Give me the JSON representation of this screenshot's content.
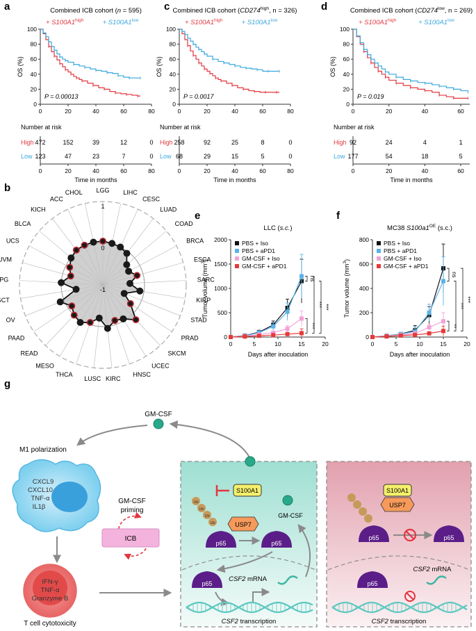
{
  "colors": {
    "high": "#e2363f",
    "low": "#3aa7dc",
    "pbs_iso": "#111111",
    "pbs_apd1": "#5ab2e8",
    "gmcsf_iso": "#f2a2d8",
    "gmcsf_apd1": "#e53a3a",
    "radar_line": "#111111",
    "radar_fill": "#bfbfbf",
    "teal_panel": "#d4f1ea",
    "pink_panel": "#efc3cd",
    "p65": "#5b1e88",
    "usp7": "#f59a5b",
    "s100a1": "#f5f06c",
    "ub": "#c69a5a",
    "gmcsf_dot": "#27a98a",
    "dna": "#5cc8c0"
  },
  "labels": {
    "a": "a",
    "b": "b",
    "c": "c",
    "d": "d",
    "e": "e",
    "f": "f",
    "g": "g"
  },
  "km_common": {
    "high_name": "S100A1",
    "high_sup": "high",
    "low_name": "S100A1",
    "low_sup": "low",
    "ylabel": "OS (%)",
    "xlabel": "Time in months",
    "risk_title": "Number at risk",
    "risk_high": "High",
    "risk_low": "Low",
    "yticks": [
      "0",
      "20",
      "40",
      "60",
      "80",
      "100"
    ]
  },
  "chart_data": [
    {
      "id": "a",
      "type": "line",
      "title_pre": "Combined ICB cohort (",
      "title_it": "n",
      "title_post": " = 595)",
      "xlim": [
        0,
        80
      ],
      "xticks": [
        "0",
        "20",
        "40",
        "60",
        "80"
      ],
      "ylim": [
        0,
        100
      ],
      "pvalue": "P = 0.00013",
      "series": [
        {
          "name": "S100A1 high",
          "x": [
            0,
            2,
            4,
            6,
            8,
            10,
            12,
            14,
            16,
            18,
            20,
            22,
            24,
            26,
            28,
            30,
            34,
            38,
            42,
            46,
            50,
            54,
            58,
            62,
            66,
            70,
            72
          ],
          "y": [
            100,
            94,
            86,
            77,
            70,
            64,
            59,
            54,
            50,
            46,
            43,
            40,
            37,
            35,
            33,
            31,
            28,
            25,
            22,
            20,
            17,
            15,
            14,
            13,
            12,
            11,
            11
          ]
        },
        {
          "name": "S100A1 low",
          "x": [
            0,
            2,
            4,
            6,
            8,
            10,
            12,
            14,
            16,
            18,
            20,
            24,
            28,
            32,
            36,
            40,
            44,
            48,
            52,
            56,
            60,
            64,
            68,
            72
          ],
          "y": [
            100,
            95,
            90,
            83,
            77,
            72,
            67,
            63,
            60,
            58,
            56,
            53,
            51,
            49,
            47,
            45,
            44,
            42,
            41,
            38,
            36,
            35,
            35,
            35
          ]
        }
      ],
      "risk": {
        "x": [
          "0",
          "20",
          "40",
          "60",
          "80"
        ],
        "high": [
          "472",
          "152",
          "39",
          "12",
          "0"
        ],
        "low": [
          "123",
          "47",
          "23",
          "7",
          "0"
        ]
      }
    },
    {
      "id": "c",
      "type": "line",
      "title_pre": "Combined ICB cohort (",
      "title_it": "CD274",
      "title_sup": "high",
      "title_post": ", n = 326)",
      "xlim": [
        0,
        80
      ],
      "xticks": [
        "0",
        "20",
        "40",
        "60",
        "80"
      ],
      "ylim": [
        0,
        100
      ],
      "pvalue": "P = 0.0017",
      "series": [
        {
          "name": "S100A1 high",
          "x": [
            0,
            2,
            4,
            6,
            8,
            10,
            12,
            14,
            16,
            18,
            20,
            22,
            24,
            26,
            28,
            30,
            34,
            38,
            42,
            46,
            50,
            54,
            58,
            62,
            66,
            70,
            72
          ],
          "y": [
            100,
            94,
            86,
            78,
            71,
            65,
            60,
            55,
            51,
            47,
            44,
            41,
            38,
            35,
            33,
            31,
            28,
            25,
            22,
            20,
            18,
            17,
            16,
            16,
            16,
            16,
            16
          ]
        },
        {
          "name": "S100A1 low",
          "x": [
            0,
            2,
            4,
            6,
            8,
            10,
            12,
            14,
            16,
            18,
            20,
            24,
            28,
            32,
            36,
            40,
            44,
            48,
            52,
            56,
            60,
            64,
            68,
            72
          ],
          "y": [
            100,
            97,
            93,
            88,
            84,
            80,
            76,
            73,
            70,
            67,
            64,
            60,
            57,
            55,
            53,
            51,
            49,
            48,
            47,
            46,
            44,
            44,
            44,
            44
          ]
        }
      ],
      "risk": {
        "x": [
          "0",
          "20",
          "40",
          "60",
          "80"
        ],
        "high": [
          "258",
          "92",
          "25",
          "8",
          "0"
        ],
        "low": [
          "68",
          "29",
          "15",
          "5",
          "0"
        ]
      }
    },
    {
      "id": "d",
      "type": "line",
      "title_pre": "Combined ICB cohort (",
      "title_it": "CD274",
      "title_sup": "low",
      "title_post": ", n = 269)",
      "xlim": [
        0,
        65
      ],
      "xticks": [
        "0",
        "20",
        "40",
        "60"
      ],
      "ylim": [
        0,
        100
      ],
      "pvalue": "P = 0.019",
      "series": [
        {
          "name": "S100A1 high",
          "x": [
            0,
            2,
            4,
            6,
            8,
            10,
            12,
            14,
            16,
            18,
            20,
            24,
            28,
            32,
            36,
            40,
            44,
            48,
            52,
            56,
            60,
            64
          ],
          "y": [
            100,
            90,
            80,
            70,
            62,
            55,
            49,
            44,
            40,
            36,
            32,
            28,
            25,
            22,
            20,
            18,
            16,
            12,
            10,
            8,
            8,
            8
          ]
        },
        {
          "name": "S100A1 low",
          "x": [
            0,
            2,
            4,
            6,
            8,
            10,
            12,
            14,
            16,
            18,
            20,
            24,
            28,
            32,
            36,
            40,
            44,
            48,
            52,
            56,
            60,
            64
          ],
          "y": [
            100,
            91,
            82,
            73,
            66,
            60,
            55,
            51,
            47,
            43,
            40,
            36,
            33,
            31,
            29,
            28,
            26,
            24,
            22,
            20,
            18,
            16
          ]
        }
      ],
      "risk": {
        "x": [
          "0",
          "20",
          "40",
          "60"
        ],
        "high": [
          "92",
          "24",
          "4",
          "1"
        ],
        "low": [
          "177",
          "54",
          "18",
          "5"
        ]
      }
    },
    {
      "id": "b",
      "type": "radar",
      "axes": [
        "LGG",
        "LIHC",
        "CESC",
        "LUAD",
        "COAD",
        "BRCA",
        "ESCA",
        "SARC",
        "KIRP",
        "STAD",
        "PRAD",
        "SKCM",
        "UCEC",
        "HNSC",
        "KIRC",
        "LUSC",
        "THCA",
        "MESO",
        "READ",
        "PAAD",
        "OV",
        "TGCT",
        "PCPG",
        "UVM",
        "UCS",
        "BLCA",
        "KICH",
        "ACC",
        "CHOL"
      ],
      "rlim": [
        -1,
        1
      ],
      "rticks": [
        "-1",
        "0",
        "1"
      ],
      "values": [
        0.05,
        0.02,
        0.0,
        -0.05,
        -0.25,
        -0.3,
        -0.15,
        -0.35,
        -0.1,
        -0.45,
        -0.2,
        0.15,
        -0.05,
        -0.1,
        0.05,
        -0.2,
        -0.05,
        0.05,
        0.0,
        -0.1,
        0.1,
        -0.35,
        0.0,
        -0.2,
        -0.1,
        0.0,
        0.05,
        0.05,
        0.05
      ],
      "highlighted": [
        true,
        false,
        false,
        false,
        false,
        false,
        true,
        false,
        false,
        false,
        true,
        true,
        false,
        true,
        false,
        false,
        true,
        false,
        true,
        true,
        false,
        false,
        false,
        true,
        true,
        false,
        true,
        true,
        false
      ]
    },
    {
      "id": "e",
      "type": "line",
      "title_pre": "LLC (",
      "title_it": "s.c.",
      "title_post": ")",
      "xlabel": "Days after inoculation",
      "ylabel": "Tumor volume (mm",
      "ylabel_sup": "3",
      "ylabel_end": ")",
      "xlim": [
        0,
        20
      ],
      "xticks": [
        "0",
        "5",
        "10",
        "15",
        "20"
      ],
      "ylim": [
        0,
        2000
      ],
      "yticks": [
        "0",
        "500",
        "1000",
        "1500",
        "2000"
      ],
      "x": [
        0,
        3,
        6,
        9,
        12,
        15
      ],
      "series": [
        {
          "name": "PBS + Iso",
          "values": [
            0,
            30,
            100,
            250,
            600,
            1150
          ]
        },
        {
          "name": "PBS + aPD1",
          "values": [
            0,
            25,
            90,
            220,
            520,
            1250
          ]
        },
        {
          "name": "GM-CSF + Iso",
          "values": [
            0,
            20,
            50,
            90,
            170,
            380
          ]
        },
        {
          "name": "GM-CSF + aPD1",
          "values": [
            0,
            10,
            25,
            40,
            60,
            80
          ]
        }
      ],
      "err": [
        0,
        15,
        40,
        80,
        180,
        450
      ],
      "sig": [
        "ns",
        "***",
        "***",
        "***"
      ]
    },
    {
      "id": "f",
      "type": "line",
      "title_pre": "MC38 ",
      "title_it": "S100a1",
      "title_sup": "OE",
      "title_post": " (s.c.)",
      "xlabel": "Days after inoculation",
      "ylabel": "Tumor volume (mm",
      "ylabel_sup": "3",
      "ylabel_end": ")",
      "xlim": [
        0,
        20
      ],
      "xticks": [
        "0",
        "5",
        "10",
        "15",
        "20"
      ],
      "ylim": [
        0,
        800
      ],
      "yticks": [
        "0",
        "200",
        "400",
        "600",
        "800"
      ],
      "x": [
        0,
        3,
        6,
        9,
        12,
        15
      ],
      "series": [
        {
          "name": "PBS + Iso",
          "values": [
            0,
            10,
            25,
            55,
            180,
            565
          ]
        },
        {
          "name": "PBS + aPD1",
          "values": [
            0,
            10,
            25,
            45,
            200,
            460
          ]
        },
        {
          "name": "GM-CSF + Iso",
          "values": [
            0,
            8,
            18,
            30,
            80,
            130
          ]
        },
        {
          "name": "GM-CSF + aPD1",
          "values": [
            0,
            5,
            12,
            18,
            30,
            50
          ]
        }
      ],
      "err": [
        0,
        6,
        15,
        40,
        70,
        200
      ],
      "sig": [
        "ns",
        "**",
        "***",
        "***"
      ]
    }
  ],
  "diagram": {
    "gmcsf_top": "GM-CSF",
    "m1": "M1 polarization",
    "macrophage_lines": [
      "CXCL9",
      "CXCL10",
      "TNF-α",
      "IL1β"
    ],
    "priming": "GM-CSF",
    "priming2": "priming",
    "icb": "ICB",
    "tcell_lines": [
      "IFN-γ",
      "TNF-α",
      "Granzyme B"
    ],
    "tcell_caption": "T cell cytotoxicity",
    "s100a1": "S100A1",
    "usp7": "USP7",
    "ub": "Ub",
    "p65": "p65",
    "gmcsf_mid": "GM-CSF",
    "csf2_mrna": "CSF2",
    "mrna": " mRNA",
    "csf2_tx": "CSF2",
    "transcription": " transcription"
  }
}
